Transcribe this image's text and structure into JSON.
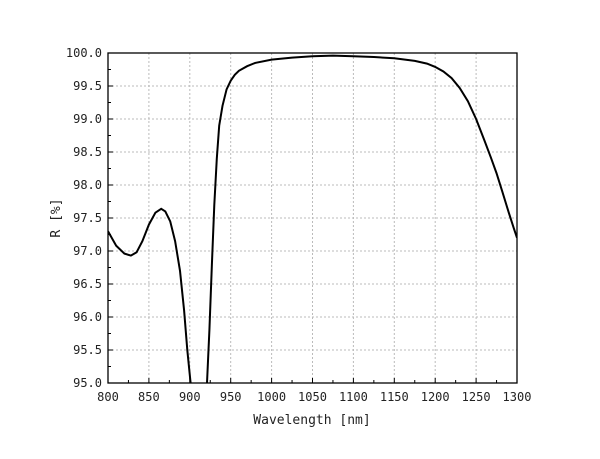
{
  "chart_data": {
    "type": "line",
    "title": "",
    "xlabel": "Wavelength [nm]",
    "ylabel": "R [%]",
    "xlim": [
      800,
      1300
    ],
    "ylim": [
      95.0,
      100.0
    ],
    "xticks": [
      "800",
      "850",
      "900",
      "950",
      "1000",
      "1050",
      "1100",
      "1150",
      "1200",
      "1250",
      "1300"
    ],
    "yticks": [
      "95.0",
      "95.5",
      "96.0",
      "96.5",
      "97.0",
      "97.5",
      "98.0",
      "98.5",
      "99.0",
      "99.5",
      "100.0"
    ],
    "grid": true,
    "series": [
      {
        "name": "R",
        "color": "#000000",
        "x": [
          800,
          810,
          820,
          828,
          835,
          842,
          850,
          858,
          865,
          870,
          876,
          882,
          888,
          893,
          897,
          901,
          905,
          918,
          921,
          924,
          927,
          930,
          933,
          936,
          940,
          945,
          950,
          955,
          960,
          970,
          980,
          1000,
          1025,
          1050,
          1075,
          1100,
          1125,
          1150,
          1175,
          1190,
          1200,
          1210,
          1220,
          1230,
          1240,
          1250,
          1260,
          1268,
          1275,
          1282,
          1290,
          1296,
          1300
        ],
        "y": [
          97.3,
          97.08,
          96.96,
          96.93,
          96.98,
          97.15,
          97.4,
          97.58,
          97.64,
          97.6,
          97.45,
          97.15,
          96.7,
          96.1,
          95.5,
          95.0,
          94.0,
          94.0,
          95.0,
          95.8,
          96.8,
          97.7,
          98.4,
          98.9,
          99.2,
          99.45,
          99.58,
          99.67,
          99.73,
          99.8,
          99.85,
          99.9,
          99.93,
          99.95,
          99.96,
          99.95,
          99.94,
          99.92,
          99.88,
          99.84,
          99.79,
          99.72,
          99.62,
          99.47,
          99.27,
          99.0,
          98.68,
          98.42,
          98.18,
          97.9,
          97.58,
          97.35,
          97.2
        ]
      }
    ]
  }
}
